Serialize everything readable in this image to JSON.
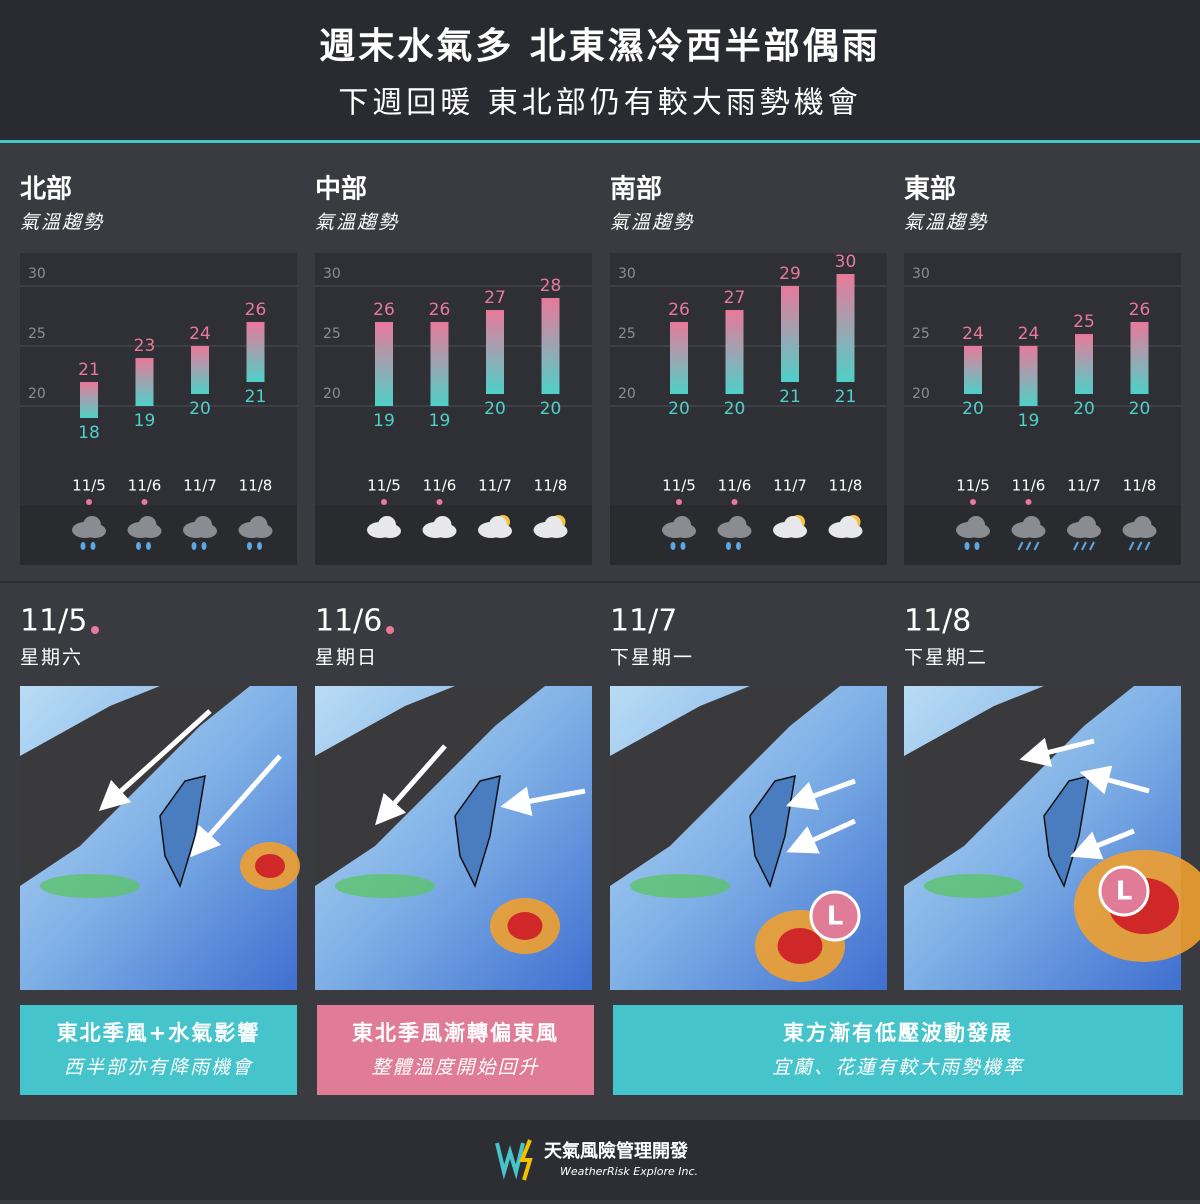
{
  "header": {
    "title": "週末水氣多 北東濕冷西半部偶雨",
    "subtitle": "下週回暖 東北部仍有較大雨勢機會"
  },
  "chart_data": [
    {
      "type": "range",
      "title": "北部",
      "subtitle": "氣溫趨勢",
      "categories": [
        "11/5",
        "11/6",
        "11/7",
        "11/8"
      ],
      "high": [
        21,
        23,
        24,
        26
      ],
      "low": [
        18,
        19,
        20,
        21
      ],
      "ylim": [
        16,
        32
      ],
      "yticks": [
        20,
        25,
        30
      ],
      "grid": true,
      "high_color": "#e8799a",
      "low_color": "#4fd0c8"
    },
    {
      "type": "range",
      "title": "中部",
      "subtitle": "氣溫趨勢",
      "categories": [
        "11/5",
        "11/6",
        "11/7",
        "11/8"
      ],
      "high": [
        26,
        26,
        27,
        28
      ],
      "low": [
        19,
        19,
        20,
        20
      ],
      "ylim": [
        16,
        32
      ],
      "yticks": [
        20,
        25,
        30
      ],
      "grid": true,
      "high_color": "#e8799a",
      "low_color": "#4fd0c8"
    },
    {
      "type": "range",
      "title": "南部",
      "subtitle": "氣溫趨勢",
      "categories": [
        "11/5",
        "11/6",
        "11/7",
        "11/8"
      ],
      "high": [
        26,
        27,
        29,
        30
      ],
      "low": [
        20,
        20,
        21,
        21
      ],
      "ylim": [
        16,
        32
      ],
      "yticks": [
        20,
        25,
        30
      ],
      "grid": true,
      "high_color": "#e8799a",
      "low_color": "#4fd0c8"
    },
    {
      "type": "range",
      "title": "東部",
      "subtitle": "氣溫趨勢",
      "categories": [
        "11/5",
        "11/6",
        "11/7",
        "11/8"
      ],
      "high": [
        24,
        24,
        25,
        26
      ],
      "low": [
        20,
        19,
        20,
        20
      ],
      "ylim": [
        16,
        32
      ],
      "yticks": [
        20,
        25,
        30
      ],
      "grid": true,
      "high_color": "#e8799a",
      "low_color": "#4fd0c8"
    }
  ],
  "days": [
    {
      "date": "11/5",
      "weekday": "星期六"
    },
    {
      "date": "11/6",
      "weekday": "星期日"
    },
    {
      "date": "11/7",
      "weekday": "下星期一"
    },
    {
      "date": "11/8",
      "weekday": "下星期二"
    }
  ],
  "maps": {
    "low_label": "L"
  },
  "captions": [
    {
      "title": "東北季風+水氣影響",
      "text": "西半部亦有降雨機會"
    },
    {
      "title": "東北季風漸轉偏東風",
      "text": "整體溫度開始回升"
    },
    {
      "title": "東方漸有低壓波動發展",
      "text": "宜蘭、花蓮有較大雨勢機率"
    }
  ],
  "footer": {
    "brand": "天氣風險管理開發",
    "company": "WeatherRisk Explore Inc."
  }
}
